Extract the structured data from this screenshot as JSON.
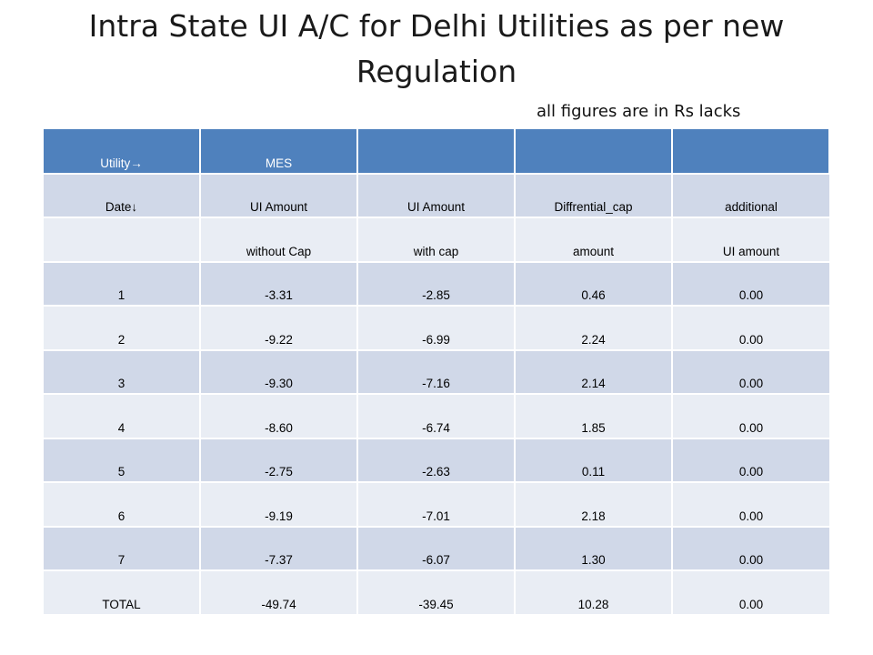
{
  "title": "Intra State UI A/C for Delhi Utilities as per new Regulation",
  "subtitle": "all figures are in Rs lacks",
  "table": {
    "header_row": [
      "Utility→",
      "MES",
      "",
      "",
      ""
    ],
    "label_row_1": [
      "Date↓",
      "UI Amount",
      "UI Amount",
      "Diffrential_cap",
      "additional"
    ],
    "label_row_2": [
      "",
      "without Cap",
      "with cap",
      "amount",
      "UI amount"
    ],
    "rows": [
      [
        "1",
        "-3.31",
        "-2.85",
        "0.46",
        "0.00"
      ],
      [
        "2",
        "-9.22",
        "-6.99",
        "2.24",
        "0.00"
      ],
      [
        "3",
        "-9.30",
        "-7.16",
        "2.14",
        "0.00"
      ],
      [
        "4",
        "-8.60",
        "-6.74",
        "1.85",
        "0.00"
      ],
      [
        "5",
        "-2.75",
        "-2.63",
        "0.11",
        "0.00"
      ],
      [
        "6",
        "-9.19",
        "-7.01",
        "2.18",
        "0.00"
      ],
      [
        "7",
        "-7.37",
        "-6.07",
        "1.30",
        "0.00"
      ]
    ],
    "total_row": [
      "TOTAL",
      "-49.74",
      "-39.45",
      "10.28",
      "0.00"
    ]
  },
  "colors": {
    "header_bg": "#4f81bd",
    "band_dark": "#d0d8e8",
    "band_light": "#e9edf4"
  }
}
